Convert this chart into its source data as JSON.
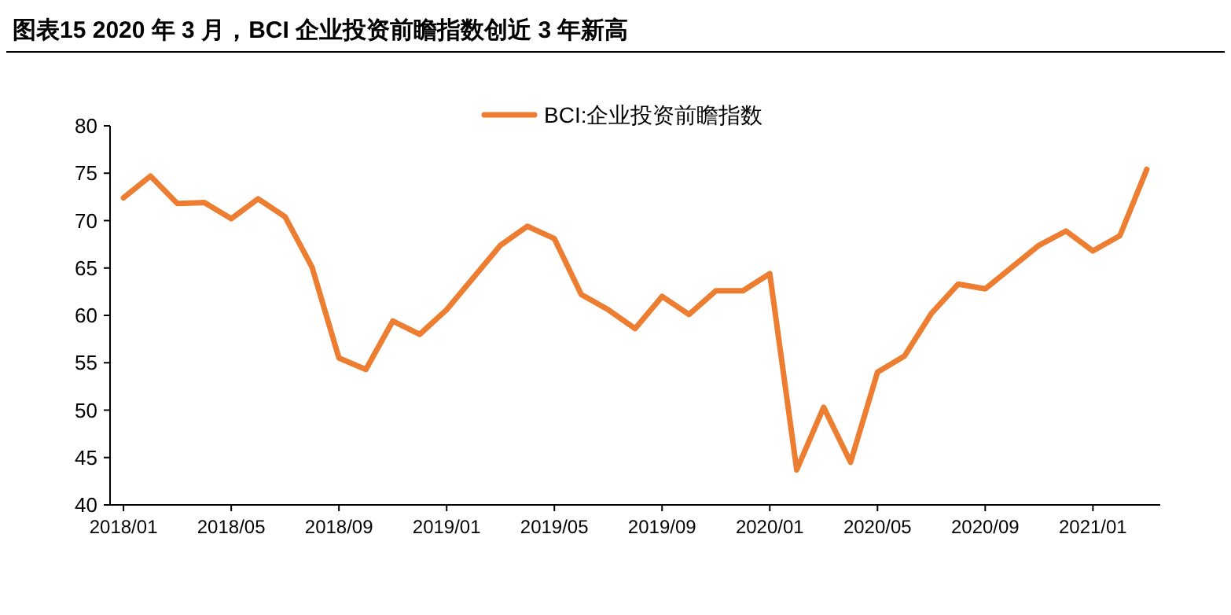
{
  "chart_data": {
    "type": "line",
    "title": "图表15    2020 年 3 月，BCI 企业投资前瞻指数创近 3 年新高",
    "categories": [
      "2018/01",
      null,
      null,
      null,
      "2018/05",
      null,
      null,
      null,
      "2018/09",
      null,
      null,
      null,
      "2019/01",
      null,
      null,
      null,
      "2019/05",
      null,
      null,
      null,
      "2019/09",
      null,
      null,
      null,
      "2020/01",
      null,
      null,
      null,
      "2020/05",
      null,
      null,
      null,
      "2020/09",
      null,
      null,
      null,
      "2021/01",
      null,
      null
    ],
    "series": [
      {
        "name": "BCI:企业投资前瞻指数",
        "color": "#ed7d31",
        "values": [
          72.4,
          74.7,
          71.8,
          71.9,
          70.2,
          72.3,
          70.4,
          65.1,
          55.5,
          54.3,
          59.4,
          58.0,
          60.6,
          64.0,
          67.4,
          69.4,
          68.1,
          62.2,
          60.6,
          58.6,
          62.0,
          60.1,
          62.6,
          62.6,
          64.4,
          43.7,
          50.3,
          44.5,
          54.0,
          55.7,
          60.2,
          63.3,
          62.8,
          65.1,
          67.4,
          68.9,
          66.8,
          68.4,
          75.4
        ]
      }
    ],
    "ylim": [
      40,
      80
    ],
    "yticks": [
      40,
      45,
      50,
      55,
      60,
      65,
      70,
      75,
      80
    ],
    "grid": false,
    "legend": "top",
    "marker": "none",
    "line_style": "solid"
  }
}
